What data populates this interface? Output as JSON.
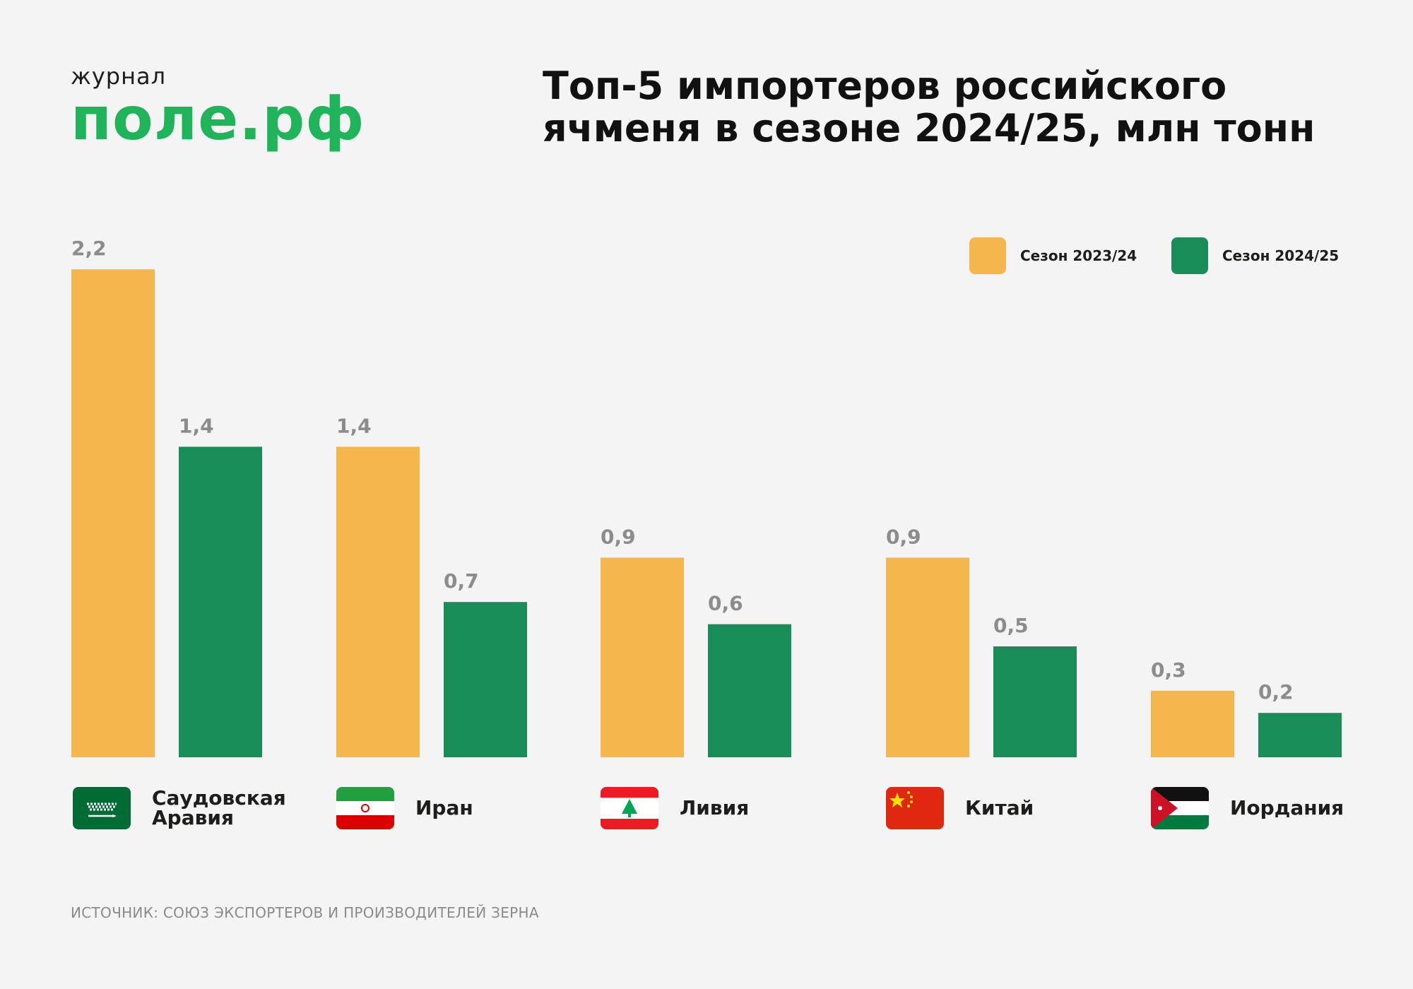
{
  "logo": {
    "small": "журнал",
    "big": "поле.рф"
  },
  "title_lines": [
    "Топ-5 импортеров российского",
    "ячменя в сезоне 2024/25, млн тонн"
  ],
  "source": "ИСТОЧНИК: СОЮЗ ЭКСПОРТЕРОВ И ПРОИЗВОДИТЕЛЕЙ ЗЕРНА",
  "colors": {
    "season_2023": "#f6b64e",
    "season_2024": "#1a8c57",
    "value_label": "#8c8c8c"
  },
  "flags": [
    "saudi-arabia-flag-icon",
    "iran-flag-icon",
    "lebanon-flag-icon",
    "china-flag-icon",
    "jordan-flag-icon"
  ],
  "chart_data": {
    "type": "bar",
    "title": "Топ-5 импортеров российского ячменя в сезоне 2024/25, млн тонн",
    "categories": [
      "Саудовская Аравия",
      "Иран",
      "Ливия",
      "Китай",
      "Иордания"
    ],
    "series": [
      {
        "name": "Сезон 2023/24",
        "values": [
          2.2,
          1.4,
          0.9,
          0.9,
          0.3
        ],
        "labels": [
          "2,2",
          "1,4",
          "0,9",
          "0,9",
          "0,3"
        ]
      },
      {
        "name": "Сезон 2024/25",
        "values": [
          1.4,
          0.7,
          0.6,
          0.5,
          0.2
        ],
        "labels": [
          "1,4",
          "0,7",
          "0,6",
          "0,5",
          "0,2"
        ]
      }
    ],
    "legend": "top-right",
    "grid": false
  }
}
